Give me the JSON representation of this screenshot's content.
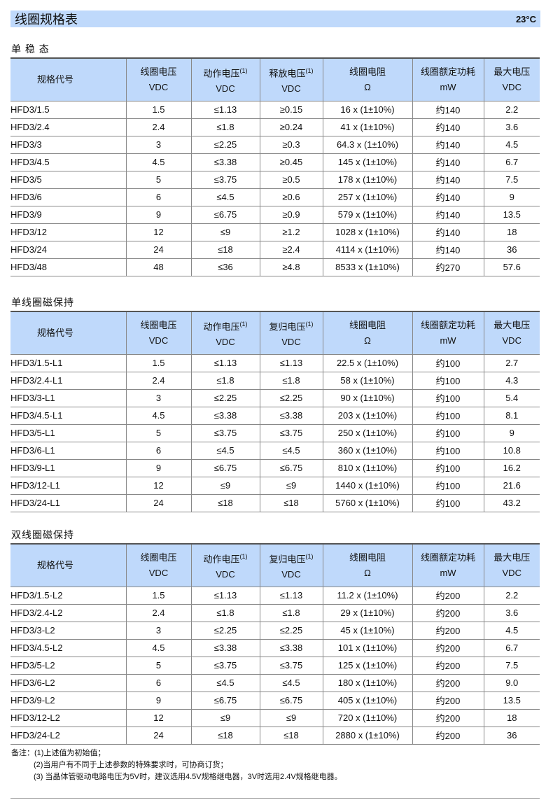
{
  "banner": {
    "title": "线圈规格表",
    "temperature": "23°C"
  },
  "tables": [
    {
      "title": "单 稳 态",
      "headers": [
        [
          "规格代号",
          ""
        ],
        [
          "线圈电压",
          "VDC"
        ],
        [
          "动作电压",
          "VDC",
          "(1)"
        ],
        [
          "释放电压",
          "VDC",
          "(1)"
        ],
        [
          "线圈电阻",
          "Ω"
        ],
        [
          "线圈额定功耗",
          "mW"
        ],
        [
          "最大电压",
          "VDC"
        ]
      ],
      "rows": [
        [
          "HFD3/1.5",
          "1.5",
          "≤1.13",
          "≥0.15",
          "16 x (1±10%)",
          "约140",
          "2.2"
        ],
        [
          "HFD3/2.4",
          "2.4",
          "≤1.8",
          "≥0.24",
          "41 x (1±10%)",
          "约140",
          "3.6"
        ],
        [
          "HFD3/3",
          "3",
          "≤2.25",
          "≥0.3",
          "64.3 x (1±10%)",
          "约140",
          "4.5"
        ],
        [
          "HFD3/4.5",
          "4.5",
          "≤3.38",
          "≥0.45",
          "145 x (1±10%)",
          "约140",
          "6.7"
        ],
        [
          "HFD3/5",
          "5",
          "≤3.75",
          "≥0.5",
          "178 x (1±10%)",
          "约140",
          "7.5"
        ],
        [
          "HFD3/6",
          "6",
          "≤4.5",
          "≥0.6",
          "257 x (1±10%)",
          "约140",
          "9"
        ],
        [
          "HFD3/9",
          "9",
          "≤6.75",
          "≥0.9",
          "579 x (1±10%)",
          "约140",
          "13.5"
        ],
        [
          "HFD3/12",
          "12",
          "≤9",
          "≥1.2",
          "1028 x (1±10%)",
          "约140",
          "18"
        ],
        [
          "HFD3/24",
          "24",
          "≤18",
          "≥2.4",
          "4114 x (1±10%)",
          "约140",
          "36"
        ],
        [
          "HFD3/48",
          "48",
          "≤36",
          "≥4.8",
          "8533 x (1±10%)",
          "约270",
          "57.6"
        ]
      ]
    },
    {
      "title": "单线圈磁保持",
      "headers": [
        [
          "规格代号",
          ""
        ],
        [
          "线圈电压",
          "VDC"
        ],
        [
          "动作电压",
          "VDC",
          "(1)"
        ],
        [
          "复归电压",
          "VDC",
          "(1)"
        ],
        [
          "线圈电阻",
          "Ω"
        ],
        [
          "线圈额定功耗",
          "mW"
        ],
        [
          "最大电压",
          "VDC"
        ]
      ],
      "rows": [
        [
          "HFD3/1.5-L1",
          "1.5",
          "≤1.13",
          "≤1.13",
          "22.5 x (1±10%)",
          "约100",
          "2.7"
        ],
        [
          "HFD3/2.4-L1",
          "2.4",
          "≤1.8",
          "≤1.8",
          "58 x (1±10%)",
          "约100",
          "4.3"
        ],
        [
          "HFD3/3-L1",
          "3",
          "≤2.25",
          "≤2.25",
          "90 x (1±10%)",
          "约100",
          "5.4"
        ],
        [
          "HFD3/4.5-L1",
          "4.5",
          "≤3.38",
          "≤3.38",
          "203 x (1±10%)",
          "约100",
          "8.1"
        ],
        [
          "HFD3/5-L1",
          "5",
          "≤3.75",
          "≤3.75",
          "250 x (1±10%)",
          "约100",
          "9"
        ],
        [
          "HFD3/6-L1",
          "6",
          "≤4.5",
          "≤4.5",
          "360 x (1±10%)",
          "约100",
          "10.8"
        ],
        [
          "HFD3/9-L1",
          "9",
          "≤6.75",
          "≤6.75",
          "810 x (1±10%)",
          "约100",
          "16.2"
        ],
        [
          "HFD3/12-L1",
          "12",
          "≤9",
          "≤9",
          "1440 x (1±10%)",
          "约100",
          "21.6"
        ],
        [
          "HFD3/24-L1",
          "24",
          "≤18",
          "≤18",
          "5760 x (1±10%)",
          "约100",
          "43.2"
        ]
      ]
    },
    {
      "title": "双线圈磁保持",
      "headers": [
        [
          "规格代号",
          ""
        ],
        [
          "线圈电压",
          "VDC"
        ],
        [
          "动作电压",
          "VDC",
          "(1)"
        ],
        [
          "复归电压",
          "VDC",
          "(1)"
        ],
        [
          "线圈电阻",
          "Ω"
        ],
        [
          "线圈额定功耗",
          "mW"
        ],
        [
          "最大电压",
          "VDC"
        ]
      ],
      "rows": [
        [
          "HFD3/1.5-L2",
          "1.5",
          "≤1.13",
          "≤1.13",
          "11.2 x (1±10%)",
          "约200",
          "2.2"
        ],
        [
          "HFD3/2.4-L2",
          "2.4",
          "≤1.8",
          "≤1.8",
          "29 x (1±10%)",
          "约200",
          "3.6"
        ],
        [
          "HFD3/3-L2",
          "3",
          "≤2.25",
          "≤2.25",
          "45 x (1±10%)",
          "约200",
          "4.5"
        ],
        [
          "HFD3/4.5-L2",
          "4.5",
          "≤3.38",
          "≤3.38",
          "101 x (1±10%)",
          "约200",
          "6.7"
        ],
        [
          "HFD3/5-L2",
          "5",
          "≤3.75",
          "≤3.75",
          "125 x (1±10%)",
          "约200",
          "7.5"
        ],
        [
          "HFD3/6-L2",
          "6",
          "≤4.5",
          "≤4.5",
          "180 x (1±10%)",
          "约200",
          "9.0"
        ],
        [
          "HFD3/9-L2",
          "9",
          "≤6.75",
          "≤6.75",
          "405 x (1±10%)",
          "约200",
          "13.5"
        ],
        [
          "HFD3/12-L2",
          "12",
          "≤9",
          "≤9",
          "720 x (1±10%)",
          "约200",
          "18"
        ],
        [
          "HFD3/24-L2",
          "24",
          "≤18",
          "≤18",
          "2880 x (1±10%)",
          "约200",
          "36"
        ]
      ]
    }
  ],
  "notes": {
    "label": "备注：",
    "items": [
      "(1)上述值为初始值；",
      "(2)当用户有不同于上述参数的特殊要求时，可协商订货；",
      "(3) 当晶体管驱动电路电压为5V时，建议选用4.5V规格继电器，3V时选用2.4V规格继电器。"
    ]
  }
}
